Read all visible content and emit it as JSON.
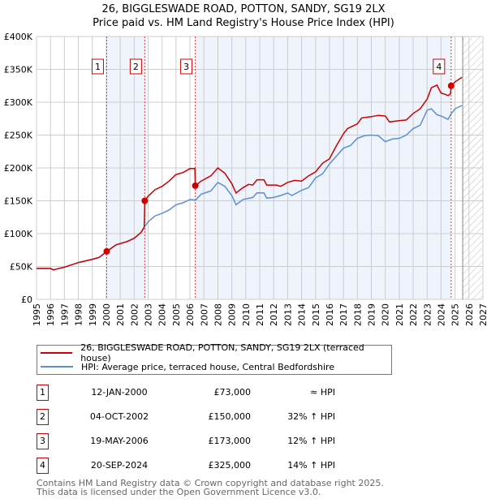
{
  "title": "26, BIGGLESWADE ROAD, POTTON, SANDY, SG19 2LX",
  "subtitle": "Price paid vs. HM Land Registry's House Price Index (HPI)",
  "colors": {
    "property": "#cc0000",
    "hpi": "#5b8fd4",
    "shade": "#eef3fc"
  },
  "chart_data": {
    "type": "line",
    "xlim": [
      1995,
      2027
    ],
    "ylim": [
      0,
      400000
    ],
    "yticks": [
      0,
      50000,
      100000,
      150000,
      200000,
      250000,
      300000,
      350000,
      400000
    ],
    "ytick_labels": [
      "£0",
      "£50K",
      "£100K",
      "£150K",
      "£200K",
      "£250K",
      "£300K",
      "£350K",
      "£400K"
    ],
    "xticks": [
      "1995",
      "1996",
      "1997",
      "1998",
      "1999",
      "2000",
      "2001",
      "2002",
      "2003",
      "2004",
      "2005",
      "2006",
      "2007",
      "2008",
      "2009",
      "2010",
      "2011",
      "2012",
      "2013",
      "2014",
      "2015",
      "2016",
      "2017",
      "2018",
      "2019",
      "2020",
      "2021",
      "2022",
      "2023",
      "2024",
      "2025",
      "2026",
      "2027"
    ],
    "grid": true,
    "forecast_from": 2025.55,
    "series": [
      {
        "name": "26, BIGGLESWADE ROAD, POTTON, SANDY, SG19 2LX (terraced house)",
        "color": "#cc0000",
        "x": [
          1995,
          1996,
          1996.2,
          1997,
          1998,
          1999,
          1999.5,
          2000.03,
          2000.7,
          2001.5,
          2002,
          2002.5,
          2002.72,
          2002.76,
          2003,
          2003.5,
          2004,
          2004.5,
          2005,
          2005.5,
          2006,
          2006.35,
          2006.38,
          2006.8,
          2007.5,
          2008,
          2008.5,
          2009,
          2009.3,
          2009.8,
          2010.2,
          2010.5,
          2010.8,
          2011.3,
          2011.5,
          2012.2,
          2012.5,
          2013,
          2013.5,
          2014,
          2014.5,
          2015,
          2015.5,
          2016,
          2016.5,
          2017,
          2017.3,
          2018,
          2018.3,
          2019,
          2019.5,
          2020,
          2020.3,
          2021,
          2021.5,
          2022,
          2022.5,
          2023,
          2023.3,
          2023.7,
          2024,
          2024.3,
          2024.5,
          2024.68,
          2024.72,
          2025,
          2025.5
        ],
        "y": [
          47000,
          47000,
          45000,
          49000,
          56000,
          61000,
          64000,
          73000,
          83000,
          88000,
          93000,
          102000,
          110000,
          150000,
          157000,
          167000,
          172000,
          180000,
          190000,
          193000,
          199000,
          199000,
          173000,
          180000,
          188000,
          200000,
          192000,
          176000,
          162000,
          170000,
          175000,
          174000,
          182000,
          182000,
          174000,
          174000,
          172000,
          178000,
          181000,
          180000,
          188000,
          194000,
          207000,
          214000,
          234000,
          252000,
          260000,
          267000,
          276000,
          278000,
          280000,
          279000,
          270000,
          272000,
          273000,
          283000,
          290000,
          305000,
          322000,
          326000,
          314000,
          312000,
          310000,
          313000,
          325000,
          331000,
          338000
        ]
      },
      {
        "name": "HPI: Average price, terraced house, Central Bedfordshire",
        "color": "#5b8fd4",
        "x": [
          1995,
          1996,
          1996.2,
          1997,
          1998,
          1999,
          1999.5,
          2000.03,
          2000.7,
          2001.5,
          2002,
          2002.5,
          2002.72,
          2003,
          2003.5,
          2004,
          2004.5,
          2005,
          2005.5,
          2006,
          2006.4,
          2006.8,
          2007.5,
          2008,
          2008.5,
          2009,
          2009.3,
          2009.8,
          2010.5,
          2010.8,
          2011.3,
          2011.5,
          2012,
          2012.5,
          2013,
          2013.3,
          2014,
          2014.5,
          2015,
          2015.5,
          2016,
          2016.5,
          2017,
          2017.5,
          2018,
          2018.5,
          2019,
          2019.5,
          2020,
          2020.5,
          2021,
          2021.5,
          2022,
          2022.5,
          2023,
          2023.3,
          2023.7,
          2024,
          2024.5,
          2024.7,
          2025,
          2025.5
        ],
        "y": [
          47000,
          47000,
          45000,
          49000,
          56000,
          61000,
          64000,
          73000,
          83000,
          88000,
          93000,
          102000,
          110000,
          118000,
          127000,
          131000,
          136000,
          144000,
          147000,
          152000,
          151000,
          160000,
          165000,
          178000,
          172000,
          158000,
          144000,
          152000,
          155000,
          162000,
          162000,
          154000,
          155000,
          158000,
          162000,
          158000,
          166000,
          170000,
          185000,
          191000,
          206000,
          218000,
          230000,
          234000,
          245000,
          249000,
          250000,
          249000,
          240000,
          244000,
          245000,
          250000,
          260000,
          265000,
          288000,
          290000,
          281000,
          279000,
          274000,
          282000,
          290000,
          295000
        ]
      }
    ],
    "sales": [
      {
        "label": "1",
        "x": 2000.03,
        "y": 73000
      },
      {
        "label": "2",
        "x": 2002.76,
        "y": 150000
      },
      {
        "label": "3",
        "x": 2006.38,
        "y": 173000
      },
      {
        "label": "4",
        "x": 2024.72,
        "y": 325000
      }
    ]
  },
  "legend": [
    "26, BIGGLESWADE ROAD, POTTON, SANDY, SG19 2LX (terraced house)",
    "HPI: Average price, terraced house, Central Bedfordshire"
  ],
  "table": [
    {
      "num": "1",
      "date": "12-JAN-2000",
      "price": "£73,000",
      "hpi": "≈ HPI"
    },
    {
      "num": "2",
      "date": "04-OCT-2002",
      "price": "£150,000",
      "hpi": "32% ↑ HPI"
    },
    {
      "num": "3",
      "date": "19-MAY-2006",
      "price": "£173,000",
      "hpi": "12% ↑ HPI"
    },
    {
      "num": "4",
      "date": "20-SEP-2024",
      "price": "£325,000",
      "hpi": "14% ↑ HPI"
    }
  ],
  "footer": [
    "Contains HM Land Registry data © Crown copyright and database right 2025.",
    "This data is licensed under the Open Government Licence v3.0."
  ]
}
